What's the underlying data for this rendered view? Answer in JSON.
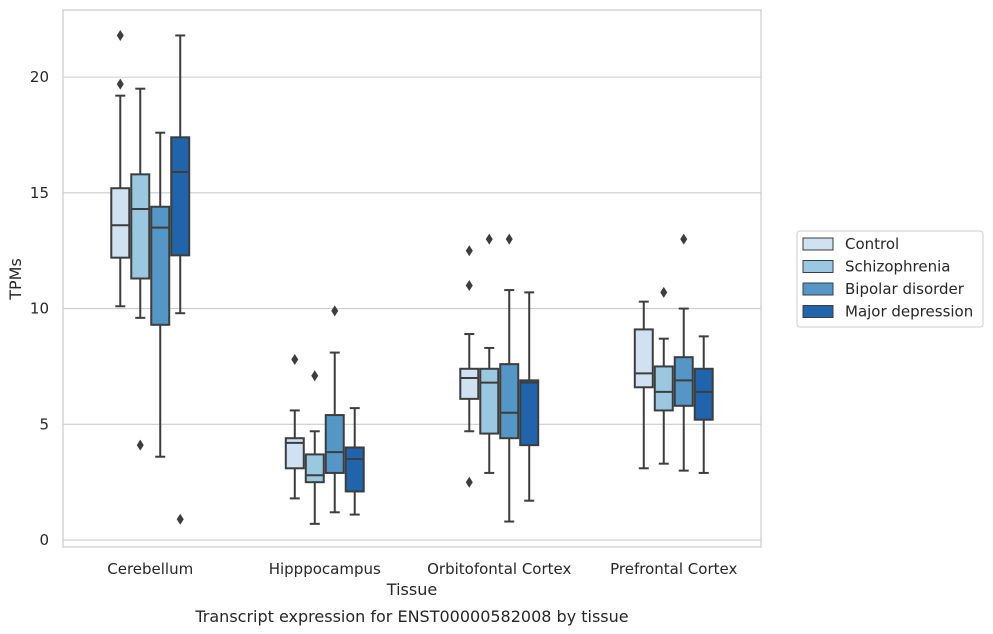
{
  "chart_data": {
    "type": "box",
    "xlabel": "Tissue",
    "ylabel": "TPMs",
    "caption": "Transcript expression for ENST00000582008 by tissue",
    "ylim": [
      -0.3,
      22.9
    ],
    "yticks": [
      0,
      5,
      10,
      15,
      20
    ],
    "categories": [
      "Cerebellum",
      "Hipppocampus",
      "Orbitofontal Cortex",
      "Prefrontal Cortex"
    ],
    "grid": "horizontal",
    "legend_position": "right",
    "series": [
      {
        "name": "Control",
        "color": "#d0e1f2",
        "boxes": [
          {
            "whislo": 10.1,
            "q1": 12.2,
            "med": 13.6,
            "q3": 15.2,
            "whishi": 19.2,
            "fliers": [
              19.7,
              21.8
            ]
          },
          {
            "whislo": 1.8,
            "q1": 3.1,
            "med": 4.2,
            "q3": 4.4,
            "whishi": 5.6,
            "fliers": [
              7.8
            ]
          },
          {
            "whislo": 4.7,
            "q1": 6.1,
            "med": 7.0,
            "q3": 7.4,
            "whishi": 8.9,
            "fliers": [
              2.5,
              11.0,
              12.5
            ]
          },
          {
            "whislo": 3.1,
            "q1": 6.6,
            "med": 7.2,
            "q3": 9.1,
            "whishi": 10.3,
            "fliers": []
          }
        ]
      },
      {
        "name": "Schizophrenia",
        "color": "#9ac8e0",
        "boxes": [
          {
            "whislo": 9.6,
            "q1": 11.3,
            "med": 14.3,
            "q3": 15.8,
            "whishi": 19.5,
            "fliers": [
              4.1
            ]
          },
          {
            "whislo": 0.7,
            "q1": 2.5,
            "med": 2.8,
            "q3": 3.7,
            "whishi": 4.7,
            "fliers": [
              7.1
            ]
          },
          {
            "whislo": 2.9,
            "q1": 4.6,
            "med": 6.8,
            "q3": 7.4,
            "whishi": 8.3,
            "fliers": [
              13.0
            ]
          },
          {
            "whislo": 3.3,
            "q1": 5.6,
            "med": 6.4,
            "q3": 7.5,
            "whishi": 8.7,
            "fliers": [
              10.7
            ]
          }
        ]
      },
      {
        "name": "Bipolar disorder",
        "color": "#5497c7",
        "boxes": [
          {
            "whislo": 3.6,
            "q1": 9.3,
            "med": 13.5,
            "q3": 14.4,
            "whishi": 17.6,
            "fliers": []
          },
          {
            "whislo": 1.2,
            "q1": 2.9,
            "med": 3.8,
            "q3": 5.4,
            "whishi": 8.1,
            "fliers": [
              9.9
            ]
          },
          {
            "whislo": 0.8,
            "q1": 4.4,
            "med": 5.5,
            "q3": 7.6,
            "whishi": 10.8,
            "fliers": [
              13.0
            ]
          },
          {
            "whislo": 3.0,
            "q1": 5.8,
            "med": 6.9,
            "q3": 7.9,
            "whishi": 10.0,
            "fliers": [
              13.0
            ]
          }
        ]
      },
      {
        "name": "Major depression",
        "color": "#2064ab",
        "boxes": [
          {
            "whislo": 9.8,
            "q1": 12.3,
            "med": 15.9,
            "q3": 17.4,
            "whishi": 21.8,
            "fliers": [
              0.9
            ]
          },
          {
            "whislo": 1.1,
            "q1": 2.1,
            "med": 3.5,
            "q3": 4.0,
            "whishi": 5.7,
            "fliers": []
          },
          {
            "whislo": 1.7,
            "q1": 4.1,
            "med": 6.8,
            "q3": 6.9,
            "whishi": 10.7,
            "fliers": []
          },
          {
            "whislo": 2.9,
            "q1": 5.2,
            "med": 6.4,
            "q3": 7.4,
            "whishi": 8.8,
            "fliers": []
          }
        ]
      }
    ]
  }
}
